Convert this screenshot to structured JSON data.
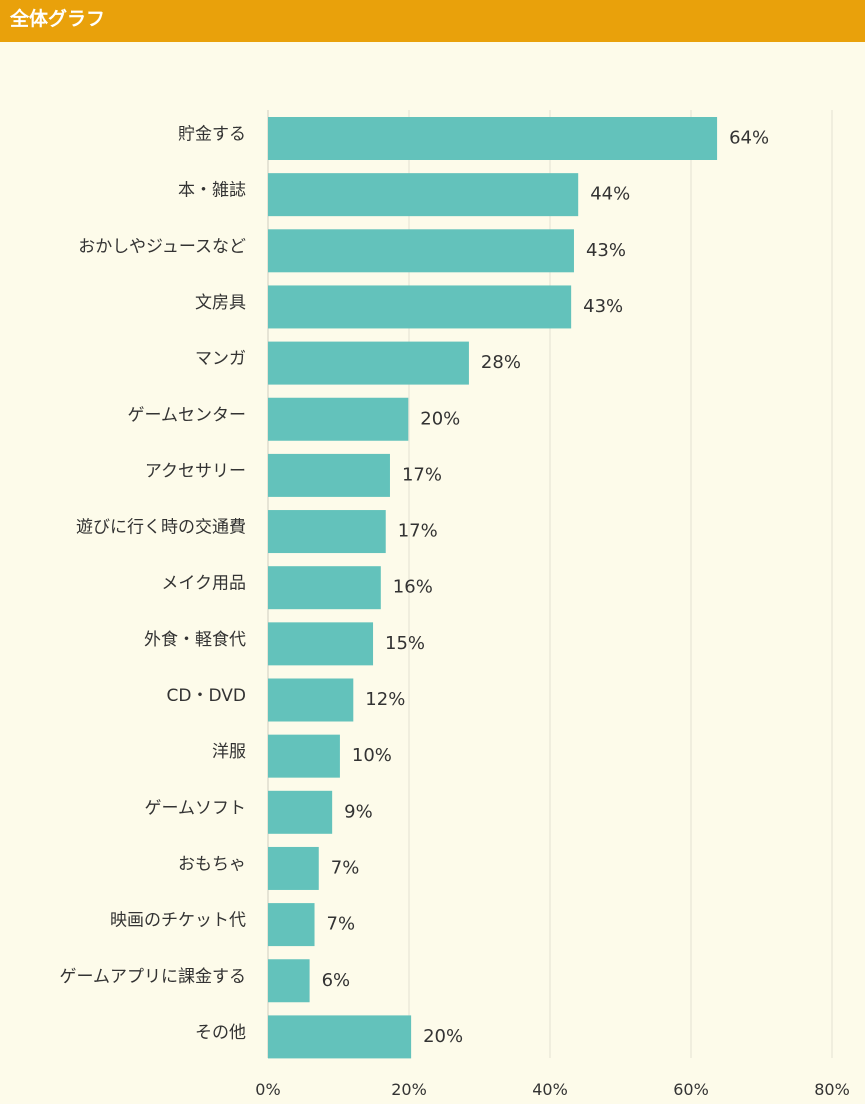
{
  "header": {
    "title": "全体グラフ"
  },
  "colors": {
    "header_bg": "#e9a10b",
    "background": "#fdfbea",
    "bar": "#63c2bb",
    "gridline": "#e2e0d2",
    "text": "#333333"
  },
  "chart_data": {
    "type": "bar",
    "orientation": "horizontal",
    "title": "",
    "xlabel": "",
    "ylabel": "",
    "xlim": [
      0,
      80
    ],
    "x_ticks": [
      0,
      20,
      40,
      60,
      80
    ],
    "x_tick_labels": [
      "0%",
      "20%",
      "40%",
      "60%",
      "80%"
    ],
    "grid": "vertical",
    "categories": [
      "貯金する",
      "本・雑誌",
      "おかしやジュースなど",
      "文房具",
      "マンガ",
      "ゲームセンター",
      "アクセサリー",
      "遊びに行く時の交通費",
      "メイク用品",
      "外食・軽食代",
      "CD・DVD",
      "洋服",
      "ゲームソフト",
      "おもちゃ",
      "映画のチケット代",
      "ゲームアプリに課金する",
      "その他"
    ],
    "values": [
      63.7,
      44,
      43.4,
      43,
      28.5,
      19.9,
      17.3,
      16.7,
      16,
      14.9,
      12.1,
      10.2,
      9.1,
      7.2,
      6.6,
      5.9,
      20.3
    ],
    "value_labels": [
      "64%",
      "44%",
      "43%",
      "43%",
      "28%",
      "20%",
      "17%",
      "17%",
      "16%",
      "15%",
      "12%",
      "10%",
      "9%",
      "7%",
      "7%",
      "6%",
      "20%"
    ]
  }
}
